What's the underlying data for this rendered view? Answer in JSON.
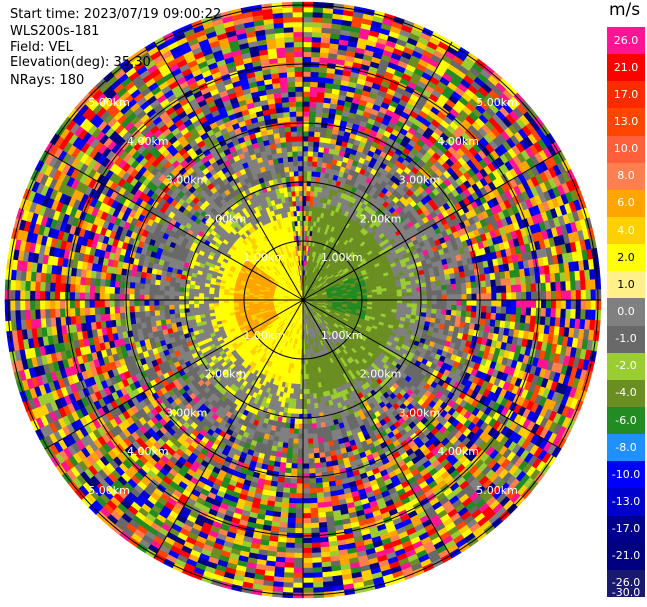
{
  "header": {
    "start_time": "Start time: 2023/07/19 09:00:22",
    "instrument": "WLS200s-181",
    "field": "Field: VEL",
    "elevation": "Elevation(deg): 35.30",
    "nrays": "NRays: 180"
  },
  "rings": {
    "labels": [
      "1.00km",
      "2.00km",
      "3.00km",
      "4.00km",
      "5.00km"
    ]
  },
  "colorbar": {
    "unit": "m/s",
    "ticks": [
      "26.0",
      "21.0",
      "17.0",
      "13.0",
      "10.0",
      "8.0",
      "6.0",
      "4.0",
      "2.0",
      "1.0",
      "0.0",
      "-1.0",
      "-2.0",
      "-4.0",
      "-6.0",
      "-8.0",
      "-10.0",
      "-13.0",
      "-17.0",
      "-21.0",
      "-26.0",
      "-30.0"
    ],
    "colors": [
      "#ff1493",
      "#ff0000",
      "#ff2a00",
      "#ff4500",
      "#ff5f3a",
      "#ff7f50",
      "#ffa500",
      "#ffd000",
      "#ffff00",
      "#fff08a",
      "#808080",
      "#696969",
      "#9acd32",
      "#6b8e23",
      "#228b22",
      "#1e90ff",
      "#0000ff",
      "#0000cd",
      "#00008b",
      "#000080",
      "#191970"
    ]
  }
}
